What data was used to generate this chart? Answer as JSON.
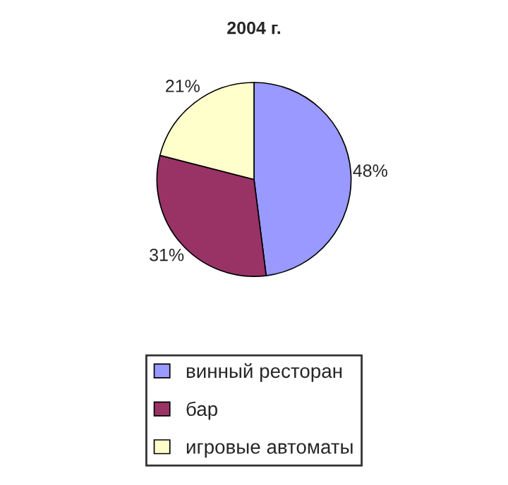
{
  "chart_data": {
    "type": "pie",
    "title": "2004 г.",
    "categories": [
      "винный ресторан",
      "бар",
      "игровые автоматы"
    ],
    "values": [
      48,
      31,
      21
    ],
    "colors": [
      "#9999ff",
      "#993366",
      "#ffffcc"
    ],
    "value_labels": [
      "48%",
      "31%",
      "21%"
    ],
    "legend": "bottom"
  }
}
